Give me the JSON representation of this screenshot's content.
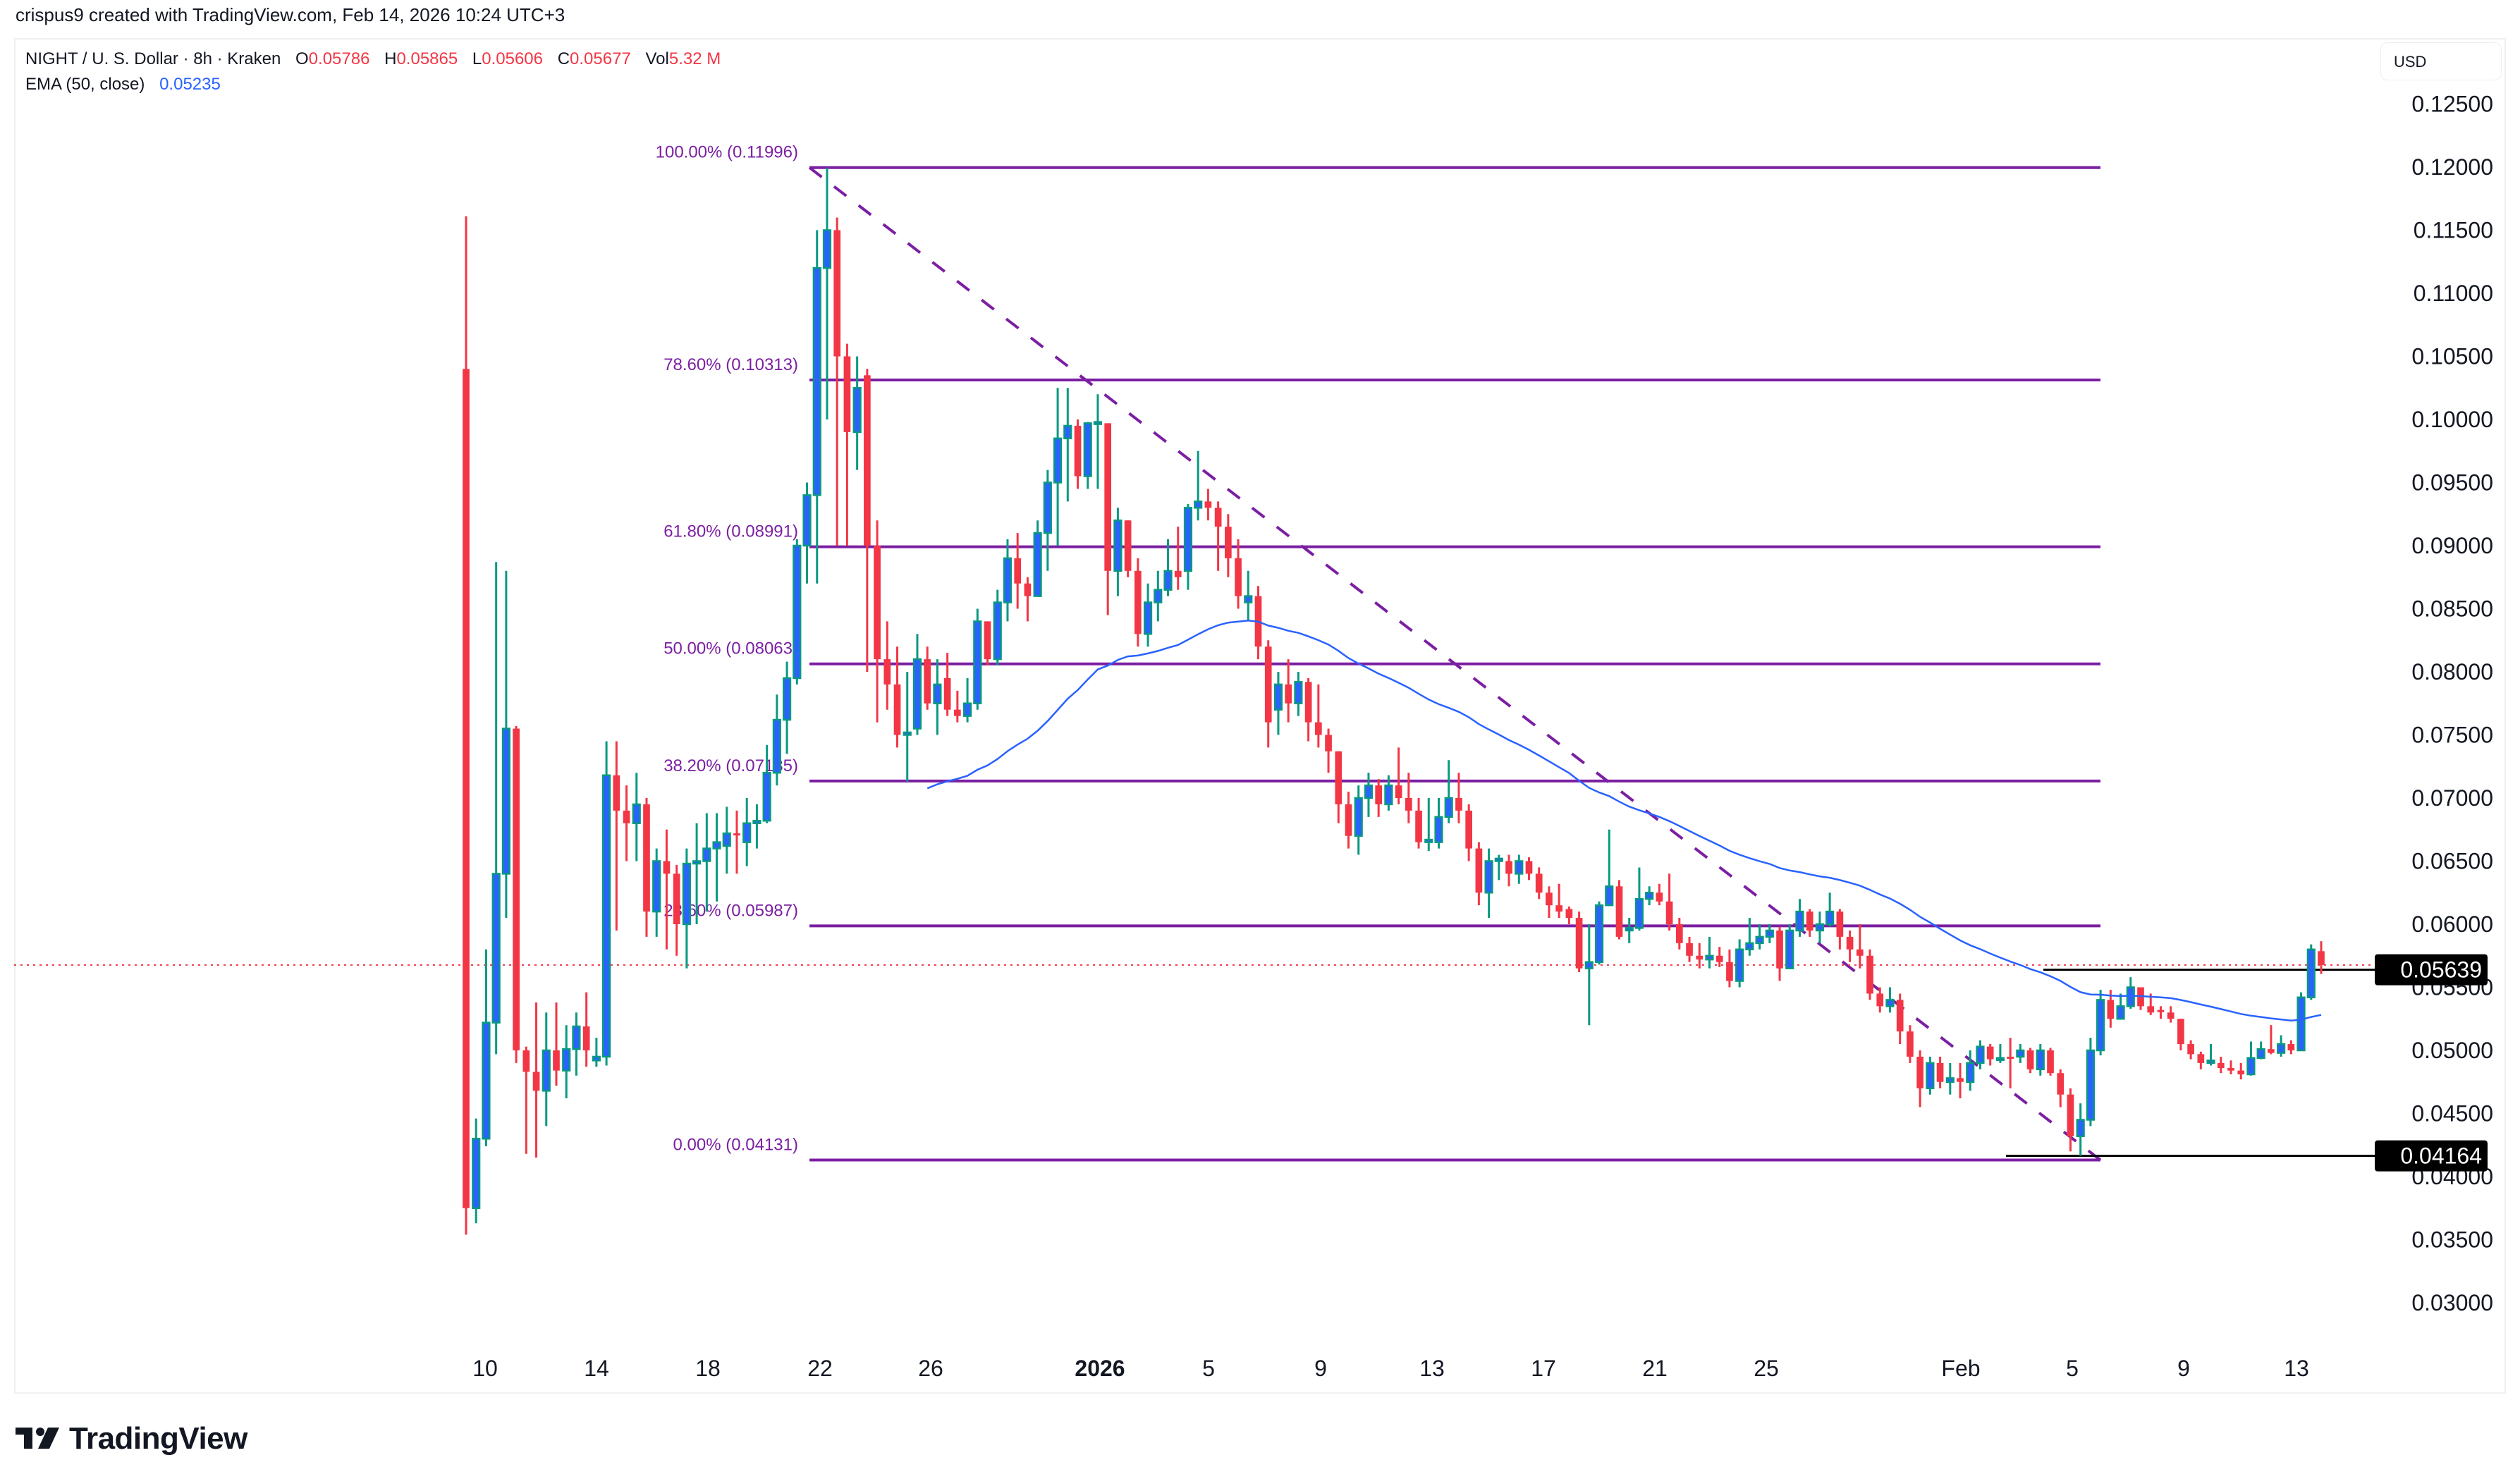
{
  "header": {
    "credit": "crispus9 created with TradingView.com, Feb 14, 2026 10:24 UTC+3"
  },
  "legend": {
    "symbol": "NIGHT / U. S. Dollar · 8h · Kraken",
    "open_label": "O",
    "open": "0.05786",
    "high_label": "H",
    "high": "0.05865",
    "low_label": "L",
    "low": "0.05606",
    "close_label": "C",
    "close": "0.05677",
    "vol_label": "Vol",
    "vol": "5.32 M",
    "ema_label": "EMA (50, close)",
    "ema_value": "0.05235"
  },
  "price_scale": {
    "currency": "USD"
  },
  "branding": {
    "logo_text": "TradingView"
  },
  "colors": {
    "up_body": "#2962ff",
    "up_wick": "#089981",
    "down": "#f23645",
    "fib": "#7b1fa2",
    "ema": "#2962ff",
    "last_price_line": "#f23645",
    "price_tag_bg": "#000000"
  },
  "chart_data": {
    "type": "candlestick",
    "title": "NIGHT / U. S. Dollar · 8h · Kraken",
    "xlabel": "",
    "ylabel": "USD",
    "ylim": [
      0.03,
      0.125
    ],
    "y_ticks": [
      "0.12500",
      "0.12000",
      "0.11500",
      "0.11000",
      "0.10500",
      "0.10000",
      "0.09500",
      "0.09000",
      "0.08500",
      "0.08000",
      "0.07500",
      "0.07000",
      "0.06500",
      "0.06000",
      "0.05500",
      "0.05000",
      "0.04500",
      "0.04000",
      "0.03500",
      "0.03000"
    ],
    "x_ticks": [
      {
        "label": "10",
        "x": 688,
        "bold": false
      },
      {
        "label": "14",
        "x": 846,
        "bold": false
      },
      {
        "label": "18",
        "x": 1004,
        "bold": false
      },
      {
        "label": "22",
        "x": 1163,
        "bold": false
      },
      {
        "label": "26",
        "x": 1320,
        "bold": false
      },
      {
        "label": "2026",
        "x": 1560,
        "bold": true
      },
      {
        "label": "5",
        "x": 1714,
        "bold": false
      },
      {
        "label": "9",
        "x": 1873,
        "bold": false
      },
      {
        "label": "13",
        "x": 2031,
        "bold": false
      },
      {
        "label": "17",
        "x": 2189,
        "bold": false
      },
      {
        "label": "21",
        "x": 2347,
        "bold": false
      },
      {
        "label": "25",
        "x": 2505,
        "bold": false
      },
      {
        "label": "Feb",
        "x": 2781,
        "bold": false
      },
      {
        "label": "5",
        "x": 2939,
        "bold": false
      },
      {
        "label": "9",
        "x": 3097,
        "bold": false
      },
      {
        "label": "13",
        "x": 3257,
        "bold": false
      }
    ],
    "indicators": [
      {
        "name": "EMA (50, close)",
        "last": 0.05235
      }
    ],
    "fibonacci": {
      "from_price": 0.11996,
      "to_price": 0.04131,
      "levels": [
        {
          "label": "100.00% (0.11996)",
          "price": 0.11996
        },
        {
          "label": "78.60% (0.10313)",
          "price": 0.10313
        },
        {
          "label": "61.80% (0.08991)",
          "price": 0.08991
        },
        {
          "label": "50.00% (0.08063)",
          "price": 0.08063
        },
        {
          "label": "38.20% (0.07135)",
          "price": 0.07135
        },
        {
          "label": "23.60% (0.05987)",
          "price": 0.05987
        },
        {
          "label": "0.00% (0.04131)",
          "price": 0.04131
        }
      ]
    },
    "horizontal_lines": [
      {
        "price": 0.05639,
        "label": "0.05639"
      },
      {
        "price": 0.04164,
        "label": "0.04164"
      }
    ],
    "last_price": 0.05677,
    "ohlc": [
      [
        0.104,
        0.1161,
        0.0354,
        0.0375
      ],
      [
        0.0375,
        0.0446,
        0.0363,
        0.043
      ],
      [
        0.043,
        0.058,
        0.0424,
        0.0522
      ],
      [
        0.0522,
        0.0887,
        0.0497,
        0.064
      ],
      [
        0.064,
        0.088,
        0.0605,
        0.0755
      ],
      [
        0.0755,
        0.0757,
        0.049,
        0.05
      ],
      [
        0.05,
        0.0503,
        0.0418,
        0.0483
      ],
      [
        0.0483,
        0.0538,
        0.0415,
        0.0468
      ],
      [
        0.0468,
        0.053,
        0.044,
        0.05
      ],
      [
        0.05,
        0.0538,
        0.0472,
        0.0484
      ],
      [
        0.0484,
        0.052,
        0.0462,
        0.0501
      ],
      [
        0.0501,
        0.053,
        0.048,
        0.0519
      ],
      [
        0.0519,
        0.0546,
        0.0487,
        0.05
      ],
      [
        0.0492,
        0.051,
        0.0487,
        0.0495
      ],
      [
        0.0495,
        0.0745,
        0.0488,
        0.0718
      ],
      [
        0.0718,
        0.0745,
        0.0595,
        0.069
      ],
      [
        0.069,
        0.071,
        0.065,
        0.068
      ],
      [
        0.068,
        0.072,
        0.065,
        0.0695
      ],
      [
        0.0695,
        0.07,
        0.059,
        0.061
      ],
      [
        0.061,
        0.066,
        0.059,
        0.065
      ],
      [
        0.065,
        0.0675,
        0.058,
        0.064
      ],
      [
        0.064,
        0.0647,
        0.0575,
        0.06
      ],
      [
        0.06,
        0.066,
        0.0565,
        0.0648
      ],
      [
        0.0648,
        0.068,
        0.06,
        0.065
      ],
      [
        0.065,
        0.0688,
        0.061,
        0.066
      ],
      [
        0.066,
        0.0688,
        0.0618,
        0.0665
      ],
      [
        0.0662,
        0.0693,
        0.064,
        0.0672
      ],
      [
        0.0672,
        0.069,
        0.064,
        0.0671
      ],
      [
        0.0665,
        0.07,
        0.0646,
        0.068
      ],
      [
        0.068,
        0.0695,
        0.066,
        0.0682
      ],
      [
        0.0682,
        0.0742,
        0.068,
        0.072
      ],
      [
        0.072,
        0.0782,
        0.071,
        0.0762
      ],
      [
        0.0762,
        0.0808,
        0.0735,
        0.0795
      ],
      [
        0.0795,
        0.0905,
        0.079,
        0.09
      ],
      [
        0.09,
        0.095,
        0.087,
        0.094
      ],
      [
        0.094,
        0.115,
        0.087,
        0.112
      ],
      [
        0.112,
        0.11996,
        0.1,
        0.115
      ],
      [
        0.115,
        0.116,
        0.09,
        0.105
      ],
      [
        0.105,
        0.106,
        0.09,
        0.099
      ],
      [
        0.099,
        0.105,
        0.096,
        0.1025
      ],
      [
        0.1035,
        0.104,
        0.08,
        0.09
      ],
      [
        0.09,
        0.092,
        0.076,
        0.081
      ],
      [
        0.081,
        0.084,
        0.077,
        0.079
      ],
      [
        0.079,
        0.082,
        0.074,
        0.075
      ],
      [
        0.075,
        0.08,
        0.0713,
        0.0752
      ],
      [
        0.0755,
        0.083,
        0.075,
        0.081
      ],
      [
        0.081,
        0.082,
        0.077,
        0.0775
      ],
      [
        0.0775,
        0.081,
        0.075,
        0.079
      ],
      [
        0.0795,
        0.0815,
        0.0765,
        0.077
      ],
      [
        0.077,
        0.0785,
        0.076,
        0.0765
      ],
      [
        0.0765,
        0.0795,
        0.076,
        0.0775
      ],
      [
        0.0775,
        0.085,
        0.077,
        0.084
      ],
      [
        0.084,
        0.084,
        0.0805,
        0.081
      ],
      [
        0.081,
        0.0865,
        0.0805,
        0.0855
      ],
      [
        0.0855,
        0.0905,
        0.084,
        0.089
      ],
      [
        0.089,
        0.091,
        0.085,
        0.087
      ],
      [
        0.087,
        0.0875,
        0.084,
        0.086
      ],
      [
        0.086,
        0.092,
        0.086,
        0.091
      ],
      [
        0.091,
        0.096,
        0.088,
        0.095
      ],
      [
        0.095,
        0.1025,
        0.09,
        0.0985
      ],
      [
        0.0985,
        0.1025,
        0.0935,
        0.0995
      ],
      [
        0.0995,
        0.1,
        0.0945,
        0.0955
      ],
      [
        0.0955,
        0.0998,
        0.0945,
        0.0997
      ],
      [
        0.0997,
        0.102,
        0.0945,
        0.0998
      ],
      [
        0.0997,
        0.0997,
        0.0845,
        0.088
      ],
      [
        0.088,
        0.093,
        0.086,
        0.092
      ],
      [
        0.092,
        0.092,
        0.0875,
        0.088
      ],
      [
        0.088,
        0.089,
        0.082,
        0.083
      ],
      [
        0.083,
        0.087,
        0.082,
        0.0855
      ],
      [
        0.0855,
        0.088,
        0.084,
        0.0865
      ],
      [
        0.0865,
        0.0905,
        0.086,
        0.088
      ],
      [
        0.088,
        0.0915,
        0.0865,
        0.0875
      ],
      [
        0.088,
        0.0933,
        0.0865,
        0.093
      ],
      [
        0.093,
        0.0975,
        0.092,
        0.0935
      ],
      [
        0.0935,
        0.0945,
        0.092,
        0.093
      ],
      [
        0.093,
        0.0935,
        0.088,
        0.0915
      ],
      [
        0.0915,
        0.0925,
        0.0875,
        0.089
      ],
      [
        0.089,
        0.0905,
        0.085,
        0.086
      ],
      [
        0.0855,
        0.088,
        0.084,
        0.086
      ],
      [
        0.086,
        0.0868,
        0.081,
        0.082
      ],
      [
        0.082,
        0.0825,
        0.074,
        0.076
      ],
      [
        0.077,
        0.08,
        0.075,
        0.079
      ],
      [
        0.079,
        0.081,
        0.076,
        0.0775
      ],
      [
        0.0775,
        0.08,
        0.0765,
        0.0792
      ],
      [
        0.0792,
        0.0795,
        0.0745,
        0.076
      ],
      [
        0.076,
        0.079,
        0.074,
        0.075
      ],
      [
        0.075,
        0.0755,
        0.072,
        0.0737
      ],
      [
        0.0737,
        0.0737,
        0.068,
        0.0695
      ],
      [
        0.0695,
        0.0705,
        0.066,
        0.067
      ],
      [
        0.067,
        0.071,
        0.0655,
        0.07
      ],
      [
        0.07,
        0.072,
        0.0685,
        0.071
      ],
      [
        0.071,
        0.0715,
        0.0685,
        0.0695
      ],
      [
        0.0695,
        0.0718,
        0.069,
        0.071
      ],
      [
        0.071,
        0.074,
        0.0695,
        0.07
      ],
      [
        0.07,
        0.072,
        0.068,
        0.069
      ],
      [
        0.069,
        0.07,
        0.066,
        0.0665
      ],
      [
        0.0665,
        0.07,
        0.0658,
        0.0667
      ],
      [
        0.0665,
        0.07,
        0.066,
        0.0685
      ],
      [
        0.0685,
        0.073,
        0.068,
        0.07
      ],
      [
        0.07,
        0.072,
        0.068,
        0.069
      ],
      [
        0.069,
        0.0695,
        0.065,
        0.066
      ],
      [
        0.066,
        0.0665,
        0.0615,
        0.0625
      ],
      [
        0.0625,
        0.066,
        0.0605,
        0.065
      ],
      [
        0.065,
        0.0655,
        0.0635,
        0.0652
      ],
      [
        0.065,
        0.0655,
        0.063,
        0.064
      ],
      [
        0.064,
        0.0655,
        0.0632,
        0.065
      ],
      [
        0.065,
        0.0653,
        0.0635,
        0.064
      ],
      [
        0.064,
        0.0645,
        0.062,
        0.0625
      ],
      [
        0.0625,
        0.063,
        0.0605,
        0.0615
      ],
      [
        0.0615,
        0.0632,
        0.0605,
        0.061
      ],
      [
        0.0612,
        0.0614,
        0.06,
        0.0605
      ],
      [
        0.0605,
        0.061,
        0.0562,
        0.0565
      ],
      [
        0.0565,
        0.06,
        0.052,
        0.057
      ],
      [
        0.057,
        0.0618,
        0.0568,
        0.0615
      ],
      [
        0.0615,
        0.0675,
        0.0615,
        0.063
      ],
      [
        0.063,
        0.0635,
        0.0588,
        0.059
      ],
      [
        0.0595,
        0.0605,
        0.0585,
        0.0597
      ],
      [
        0.0597,
        0.0645,
        0.0595,
        0.062
      ],
      [
        0.062,
        0.063,
        0.0615,
        0.0625
      ],
      [
        0.0625,
        0.0632,
        0.0615,
        0.0618
      ],
      [
        0.0618,
        0.064,
        0.0595,
        0.06
      ],
      [
        0.06,
        0.0605,
        0.058,
        0.0585
      ],
      [
        0.0585,
        0.059,
        0.057,
        0.0575
      ],
      [
        0.0575,
        0.0585,
        0.0565,
        0.0572
      ],
      [
        0.0572,
        0.059,
        0.0565,
        0.0575
      ],
      [
        0.0575,
        0.0582,
        0.0566,
        0.057
      ],
      [
        0.057,
        0.058,
        0.055,
        0.0555
      ],
      [
        0.0555,
        0.0588,
        0.055,
        0.058
      ],
      [
        0.058,
        0.0605,
        0.0575,
        0.0585
      ],
      [
        0.0585,
        0.06,
        0.058,
        0.059
      ],
      [
        0.059,
        0.06,
        0.0585,
        0.0595
      ],
      [
        0.0595,
        0.0598,
        0.0555,
        0.0565
      ],
      [
        0.0565,
        0.06,
        0.0565,
        0.0595
      ],
      [
        0.0595,
        0.062,
        0.059,
        0.061
      ],
      [
        0.061,
        0.0612,
        0.059,
        0.0595
      ],
      [
        0.0595,
        0.061,
        0.0585,
        0.06
      ],
      [
        0.06,
        0.0625,
        0.0598,
        0.061
      ],
      [
        0.061,
        0.0612,
        0.058,
        0.059
      ],
      [
        0.059,
        0.0595,
        0.057,
        0.058
      ],
      [
        0.058,
        0.06,
        0.0565,
        0.0575
      ],
      [
        0.0575,
        0.058,
        0.054,
        0.0545
      ],
      [
        0.0545,
        0.055,
        0.053,
        0.0535
      ],
      [
        0.0535,
        0.055,
        0.053,
        0.054
      ],
      [
        0.054,
        0.0545,
        0.0505,
        0.0515
      ],
      [
        0.0515,
        0.052,
        0.049,
        0.0495
      ],
      [
        0.0495,
        0.05,
        0.0455,
        0.047
      ],
      [
        0.047,
        0.0495,
        0.0465,
        0.049
      ],
      [
        0.049,
        0.0495,
        0.047,
        0.0475
      ],
      [
        0.0475,
        0.049,
        0.0465,
        0.0478
      ],
      [
        0.0478,
        0.049,
        0.0462,
        0.0475
      ],
      [
        0.0475,
        0.05,
        0.0468,
        0.049
      ],
      [
        0.049,
        0.0508,
        0.0485,
        0.0503
      ],
      [
        0.0503,
        0.0505,
        0.0488,
        0.0493
      ],
      [
        0.0493,
        0.0505,
        0.049,
        0.0494
      ],
      [
        0.0495,
        0.051,
        0.047,
        0.0494
      ],
      [
        0.0495,
        0.0505,
        0.049,
        0.05
      ],
      [
        0.05,
        0.0502,
        0.0482,
        0.0485
      ],
      [
        0.0485,
        0.0505,
        0.048,
        0.05
      ],
      [
        0.05,
        0.0502,
        0.048,
        0.0482
      ],
      [
        0.0482,
        0.0485,
        0.0455,
        0.0465
      ],
      [
        0.0465,
        0.047,
        0.042,
        0.0432
      ],
      [
        0.0432,
        0.0458,
        0.04164,
        0.0445
      ],
      [
        0.0445,
        0.051,
        0.044,
        0.05
      ],
      [
        0.05,
        0.0548,
        0.0496,
        0.054
      ],
      [
        0.054,
        0.0548,
        0.0518,
        0.0525
      ],
      [
        0.0525,
        0.0545,
        0.0525,
        0.0535
      ],
      [
        0.0535,
        0.0558,
        0.0533,
        0.055
      ],
      [
        0.055,
        0.055,
        0.0532,
        0.0535
      ],
      [
        0.0535,
        0.0545,
        0.0528,
        0.053
      ],
      [
        0.0532,
        0.0535,
        0.0525,
        0.0531
      ],
      [
        0.053,
        0.0535,
        0.0522,
        0.0525
      ],
      [
        0.0525,
        0.0525,
        0.05,
        0.0505
      ],
      [
        0.0505,
        0.0508,
        0.0493,
        0.0497
      ],
      [
        0.0497,
        0.0499,
        0.0485,
        0.049
      ],
      [
        0.049,
        0.0505,
        0.0488,
        0.0492
      ],
      [
        0.049,
        0.0495,
        0.0482,
        0.0486
      ],
      [
        0.0486,
        0.0492,
        0.0481,
        0.0484
      ],
      [
        0.0484,
        0.049,
        0.0477,
        0.0481
      ],
      [
        0.0481,
        0.0507,
        0.048,
        0.0494
      ],
      [
        0.0494,
        0.0507,
        0.0493,
        0.0501
      ],
      [
        0.0501,
        0.052,
        0.0497,
        0.0498
      ],
      [
        0.0498,
        0.0512,
        0.0495,
        0.0505
      ],
      [
        0.0505,
        0.0508,
        0.0497,
        0.05
      ],
      [
        0.05,
        0.0546,
        0.05,
        0.0542
      ],
      [
        0.0542,
        0.0584,
        0.054,
        0.058
      ],
      [
        0.05786,
        0.05865,
        0.05606,
        0.05677
      ]
    ]
  }
}
